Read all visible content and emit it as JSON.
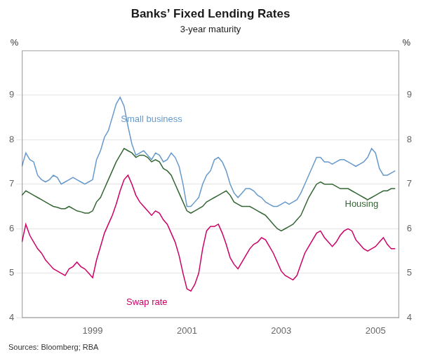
{
  "chart_data": {
    "type": "line",
    "title": "Banks’ Fixed Lending Rates",
    "subtitle": "3-year maturity",
    "ylabel": "%",
    "y2label": "%",
    "source": "Sources: Bloomberg; RBA",
    "x": [
      1997.5,
      1997.583,
      1997.667,
      1997.75,
      1997.833,
      1997.917,
      1998.0,
      1998.083,
      1998.167,
      1998.25,
      1998.333,
      1998.417,
      1998.5,
      1998.583,
      1998.667,
      1998.75,
      1998.833,
      1998.917,
      1999.0,
      1999.083,
      1999.167,
      1999.25,
      1999.333,
      1999.417,
      1999.5,
      1999.583,
      1999.667,
      1999.75,
      1999.833,
      1999.917,
      2000.0,
      2000.083,
      2000.167,
      2000.25,
      2000.333,
      2000.417,
      2000.5,
      2000.583,
      2000.667,
      2000.75,
      2000.833,
      2000.917,
      2001.0,
      2001.083,
      2001.167,
      2001.25,
      2001.333,
      2001.417,
      2001.5,
      2001.583,
      2001.667,
      2001.75,
      2001.833,
      2001.917,
      2002.0,
      2002.083,
      2002.167,
      2002.25,
      2002.333,
      2002.417,
      2002.5,
      2002.583,
      2002.667,
      2002.75,
      2002.833,
      2002.917,
      2003.0,
      2003.083,
      2003.167,
      2003.25,
      2003.333,
      2003.417,
      2003.5,
      2003.583,
      2003.667,
      2003.75,
      2003.833,
      2003.917,
      2004.0,
      2004.083,
      2004.167,
      2004.25,
      2004.333,
      2004.417,
      2004.5,
      2004.583,
      2004.667,
      2004.75,
      2004.833,
      2004.917,
      2005.0,
      2005.083,
      2005.167,
      2005.25,
      2005.333,
      2005.417
    ],
    "series": [
      {
        "name": "Small business",
        "color": "#6699CC",
        "values": [
          7.4,
          7.7,
          7.55,
          7.5,
          7.2,
          7.1,
          7.05,
          7.1,
          7.2,
          7.15,
          7.0,
          7.05,
          7.1,
          7.15,
          7.1,
          7.05,
          7.0,
          7.05,
          7.1,
          7.55,
          7.75,
          8.05,
          8.2,
          8.5,
          8.8,
          8.95,
          8.75,
          8.3,
          7.9,
          7.65,
          7.7,
          7.75,
          7.65,
          7.55,
          7.7,
          7.65,
          7.5,
          7.55,
          7.7,
          7.6,
          7.4,
          7.0,
          6.5,
          6.5,
          6.6,
          6.7,
          7.0,
          7.2,
          7.3,
          7.55,
          7.6,
          7.5,
          7.3,
          7.0,
          6.8,
          6.7,
          6.8,
          6.9,
          6.9,
          6.85,
          6.75,
          6.7,
          6.6,
          6.55,
          6.5,
          6.5,
          6.55,
          6.6,
          6.55,
          6.6,
          6.65,
          6.8,
          7.0,
          7.2,
          7.4,
          7.6,
          7.6,
          7.5,
          7.5,
          7.45,
          7.5,
          7.55,
          7.55,
          7.5,
          7.45,
          7.4,
          7.45,
          7.5,
          7.6,
          7.8,
          7.7,
          7.35,
          7.2,
          7.2,
          7.25,
          7.3
        ]
      },
      {
        "name": "Housing",
        "color": "#336633",
        "values": [
          6.75,
          6.85,
          6.8,
          6.75,
          6.7,
          6.65,
          6.6,
          6.55,
          6.5,
          6.48,
          6.45,
          6.45,
          6.5,
          6.45,
          6.4,
          6.38,
          6.35,
          6.35,
          6.4,
          6.6,
          6.7,
          6.9,
          7.1,
          7.3,
          7.5,
          7.65,
          7.8,
          7.75,
          7.7,
          7.6,
          7.65,
          7.65,
          7.6,
          7.5,
          7.55,
          7.5,
          7.35,
          7.3,
          7.2,
          7.0,
          6.8,
          6.6,
          6.4,
          6.35,
          6.4,
          6.45,
          6.5,
          6.6,
          6.65,
          6.7,
          6.75,
          6.8,
          6.85,
          6.75,
          6.6,
          6.55,
          6.5,
          6.5,
          6.5,
          6.45,
          6.4,
          6.35,
          6.3,
          6.2,
          6.1,
          6.0,
          5.95,
          6.0,
          6.05,
          6.1,
          6.2,
          6.3,
          6.5,
          6.7,
          6.85,
          7.0,
          7.05,
          7.0,
          7.0,
          7.0,
          6.95,
          6.9,
          6.9,
          6.9,
          6.85,
          6.8,
          6.75,
          6.7,
          6.65,
          6.7,
          6.75,
          6.8,
          6.85,
          6.85,
          6.9,
          6.9
        ]
      },
      {
        "name": "Swap rate",
        "color": "#CC0066",
        "values": [
          5.7,
          6.1,
          5.85,
          5.7,
          5.55,
          5.45,
          5.3,
          5.2,
          5.1,
          5.05,
          5.0,
          4.95,
          5.1,
          5.15,
          5.25,
          5.15,
          5.1,
          5.0,
          4.9,
          5.3,
          5.6,
          5.9,
          6.1,
          6.3,
          6.55,
          6.85,
          7.1,
          7.2,
          7.0,
          6.75,
          6.6,
          6.5,
          6.4,
          6.3,
          6.4,
          6.35,
          6.2,
          6.1,
          5.9,
          5.7,
          5.4,
          5.0,
          4.65,
          4.6,
          4.75,
          5.0,
          5.55,
          5.95,
          6.05,
          6.05,
          6.1,
          5.9,
          5.65,
          5.35,
          5.2,
          5.1,
          5.25,
          5.4,
          5.55,
          5.65,
          5.7,
          5.8,
          5.75,
          5.6,
          5.45,
          5.25,
          5.05,
          4.95,
          4.9,
          4.85,
          4.95,
          5.2,
          5.45,
          5.6,
          5.75,
          5.9,
          5.95,
          5.8,
          5.7,
          5.6,
          5.7,
          5.85,
          5.95,
          6.0,
          5.95,
          5.75,
          5.65,
          5.55,
          5.5,
          5.55,
          5.6,
          5.7,
          5.8,
          5.65,
          5.55,
          5.55
        ]
      }
    ],
    "annotations": [
      {
        "text": "Small business",
        "x": 1999.6,
        "y": 8.35,
        "color": "#6699CC"
      },
      {
        "text": "Housing",
        "x": 2004.35,
        "y": 6.55,
        "color": "#336633"
      },
      {
        "text": "Swap rate",
        "x": 2000.15,
        "y": 4.45,
        "color": "#CC0066"
      }
    ],
    "xlim": [
      1997.5,
      2005.5
    ],
    "xticks": [
      1999,
      2001,
      2003,
      2005
    ],
    "ylim": [
      4,
      10
    ],
    "yticks": [
      4,
      5,
      6,
      7,
      8,
      9
    ],
    "y2lim": [
      4,
      10
    ],
    "y2ticks": [
      4,
      5,
      6,
      7,
      8,
      9
    ],
    "grid": "y"
  }
}
